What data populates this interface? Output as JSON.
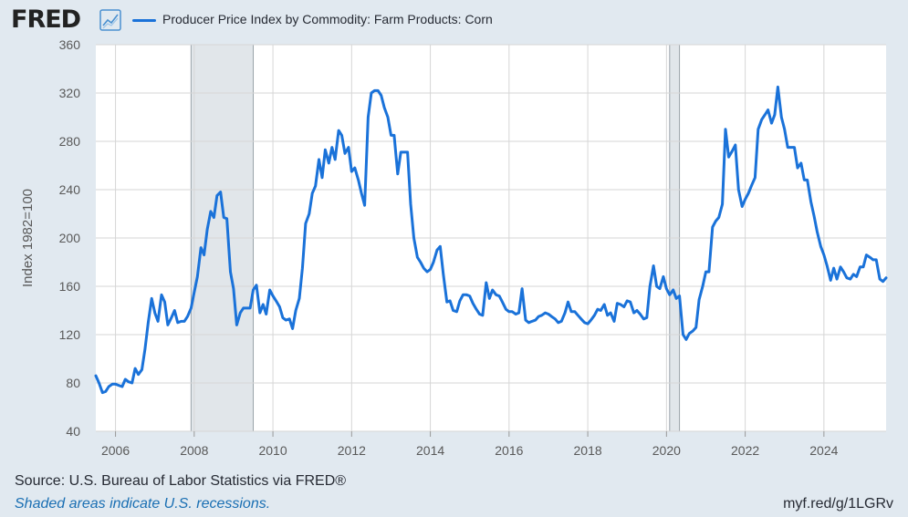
{
  "header": {
    "logo_text": "FRED",
    "logo_icon": "chart-line-icon",
    "series_label": "Producer Price Index by Commodity: Farm Products: Corn"
  },
  "colors": {
    "background": "#e1e9f0",
    "plot_background": "#ffffff",
    "series": "#1a72d9",
    "recession": "#e1e6ea",
    "grid": "#d6d6d6",
    "note_link": "#1a6fb3"
  },
  "footer": {
    "source": "Source: U.S. Bureau of Labor Statistics via FRED®",
    "note": "Shaded areas indicate U.S. recessions.",
    "url": "myf.red/g/1LGRv"
  },
  "chart_data": {
    "type": "line",
    "title": "Producer Price Index by Commodity: Farm Products: Corn",
    "xlabel": "",
    "ylabel": "Index 1982=100",
    "xlim": [
      2005.5,
      2025.58
    ],
    "ylim": [
      40,
      360
    ],
    "y_ticks": [
      40,
      80,
      120,
      160,
      200,
      240,
      280,
      320,
      360
    ],
    "x_ticks": [
      2006,
      2008,
      2010,
      2012,
      2014,
      2016,
      2018,
      2020,
      2022,
      2024
    ],
    "grid": true,
    "legend_position": "top-left",
    "recessions": [
      [
        2007.92,
        2009.5
      ],
      [
        2020.08,
        2020.33
      ]
    ],
    "series": [
      {
        "name": "Producer Price Index by Commodity: Farm Products: Corn",
        "x": [
          2005.5,
          2005.58,
          2005.67,
          2005.75,
          2005.83,
          2005.92,
          2006.0,
          2006.08,
          2006.17,
          2006.25,
          2006.33,
          2006.42,
          2006.5,
          2006.58,
          2006.67,
          2006.75,
          2006.83,
          2006.92,
          2007.0,
          2007.08,
          2007.17,
          2007.25,
          2007.33,
          2007.42,
          2007.5,
          2007.58,
          2007.67,
          2007.75,
          2007.83,
          2007.92,
          2008.0,
          2008.08,
          2008.17,
          2008.25,
          2008.33,
          2008.42,
          2008.5,
          2008.58,
          2008.67,
          2008.75,
          2008.83,
          2008.92,
          2009.0,
          2009.08,
          2009.17,
          2009.25,
          2009.33,
          2009.42,
          2009.5,
          2009.58,
          2009.67,
          2009.75,
          2009.83,
          2009.92,
          2010.0,
          2010.08,
          2010.17,
          2010.25,
          2010.33,
          2010.42,
          2010.5,
          2010.58,
          2010.67,
          2010.75,
          2010.83,
          2010.92,
          2011.0,
          2011.08,
          2011.17,
          2011.25,
          2011.33,
          2011.42,
          2011.5,
          2011.58,
          2011.67,
          2011.75,
          2011.83,
          2011.92,
          2012.0,
          2012.08,
          2012.17,
          2012.25,
          2012.33,
          2012.42,
          2012.5,
          2012.58,
          2012.67,
          2012.75,
          2012.83,
          2012.92,
          2013.0,
          2013.08,
          2013.17,
          2013.25,
          2013.33,
          2013.42,
          2013.5,
          2013.58,
          2013.67,
          2013.75,
          2013.83,
          2013.92,
          2014.0,
          2014.08,
          2014.17,
          2014.25,
          2014.33,
          2014.42,
          2014.5,
          2014.58,
          2014.67,
          2014.75,
          2014.83,
          2014.92,
          2015.0,
          2015.08,
          2015.17,
          2015.25,
          2015.33,
          2015.42,
          2015.5,
          2015.58,
          2015.67,
          2015.75,
          2015.83,
          2015.92,
          2016.0,
          2016.08,
          2016.17,
          2016.25,
          2016.33,
          2016.42,
          2016.5,
          2016.58,
          2016.67,
          2016.75,
          2016.83,
          2016.92,
          2017.0,
          2017.08,
          2017.17,
          2017.25,
          2017.33,
          2017.42,
          2017.5,
          2017.58,
          2017.67,
          2017.75,
          2017.83,
          2017.92,
          2018.0,
          2018.08,
          2018.17,
          2018.25,
          2018.33,
          2018.42,
          2018.5,
          2018.58,
          2018.67,
          2018.75,
          2018.83,
          2018.92,
          2019.0,
          2019.08,
          2019.17,
          2019.25,
          2019.33,
          2019.42,
          2019.5,
          2019.58,
          2019.67,
          2019.75,
          2019.83,
          2019.92,
          2020.0,
          2020.08,
          2020.17,
          2020.25,
          2020.33,
          2020.42,
          2020.5,
          2020.58,
          2020.67,
          2020.75,
          2020.83,
          2020.92,
          2021.0,
          2021.08,
          2021.17,
          2021.25,
          2021.33,
          2021.42,
          2021.5,
          2021.58,
          2021.67,
          2021.75,
          2021.83,
          2021.92,
          2022.0,
          2022.08,
          2022.17,
          2022.25,
          2022.33,
          2022.42,
          2022.5,
          2022.58,
          2022.67,
          2022.75,
          2022.83,
          2022.92,
          2023.0,
          2023.08,
          2023.17,
          2023.25,
          2023.33,
          2023.42,
          2023.5,
          2023.58,
          2023.67,
          2023.75,
          2023.83,
          2023.92,
          2024.0,
          2024.08,
          2024.17,
          2024.25,
          2024.33,
          2024.42,
          2024.5,
          2024.58,
          2024.67,
          2024.75,
          2024.83,
          2024.92,
          2025.0,
          2025.08,
          2025.17,
          2025.25,
          2025.33,
          2025.42,
          2025.5,
          2025.58
        ],
        "values": [
          86,
          80,
          72,
          73,
          77,
          79,
          79,
          78,
          77,
          83,
          81,
          80,
          92,
          87,
          91,
          108,
          130,
          150,
          138,
          131,
          153,
          147,
          128,
          134,
          140,
          130,
          131,
          131,
          135,
          142,
          155,
          168,
          192,
          186,
          207,
          222,
          217,
          235,
          238,
          217,
          216,
          172,
          158,
          128,
          138,
          142,
          142,
          142,
          157,
          161,
          138,
          145,
          137,
          157,
          152,
          148,
          143,
          134,
          132,
          133,
          125,
          140,
          150,
          175,
          212,
          220,
          237,
          243,
          265,
          250,
          273,
          262,
          275,
          265,
          289,
          285,
          270,
          275,
          255,
          258,
          248,
          237,
          227,
          300,
          320,
          322,
          322,
          318,
          308,
          300,
          285,
          285,
          253,
          271,
          271,
          271,
          228,
          200,
          184,
          180,
          175,
          172,
          174,
          180,
          190,
          193,
          170,
          147,
          148,
          140,
          139,
          148,
          153,
          153,
          152,
          146,
          141,
          137,
          136,
          163,
          150,
          157,
          153,
          152,
          147,
          141,
          139,
          139,
          137,
          138,
          158,
          132,
          130,
          131,
          132,
          135,
          136,
          138,
          137,
          135,
          133,
          130,
          131,
          138,
          147,
          139,
          139,
          136,
          133,
          130,
          129,
          132,
          136,
          141,
          140,
          145,
          136,
          138,
          131,
          146,
          145,
          143,
          148,
          147,
          138,
          140,
          137,
          133,
          134,
          160,
          177,
          160,
          158,
          168,
          158,
          153,
          157,
          150,
          152,
          120,
          116,
          121,
          123,
          126,
          149,
          160,
          172,
          172,
          209,
          214,
          217,
          228,
          290,
          267,
          272,
          277,
          240,
          226,
          232,
          237,
          244,
          250,
          290,
          298,
          302,
          306,
          295,
          302,
          325,
          300,
          290,
          275,
          275,
          275,
          258,
          262,
          248,
          248,
          230,
          218,
          205,
          193,
          186,
          177,
          165,
          175,
          166,
          176,
          172,
          167,
          166,
          170,
          168,
          176,
          176,
          186,
          184,
          182,
          182,
          166,
          164,
          167
        ]
      }
    ]
  }
}
